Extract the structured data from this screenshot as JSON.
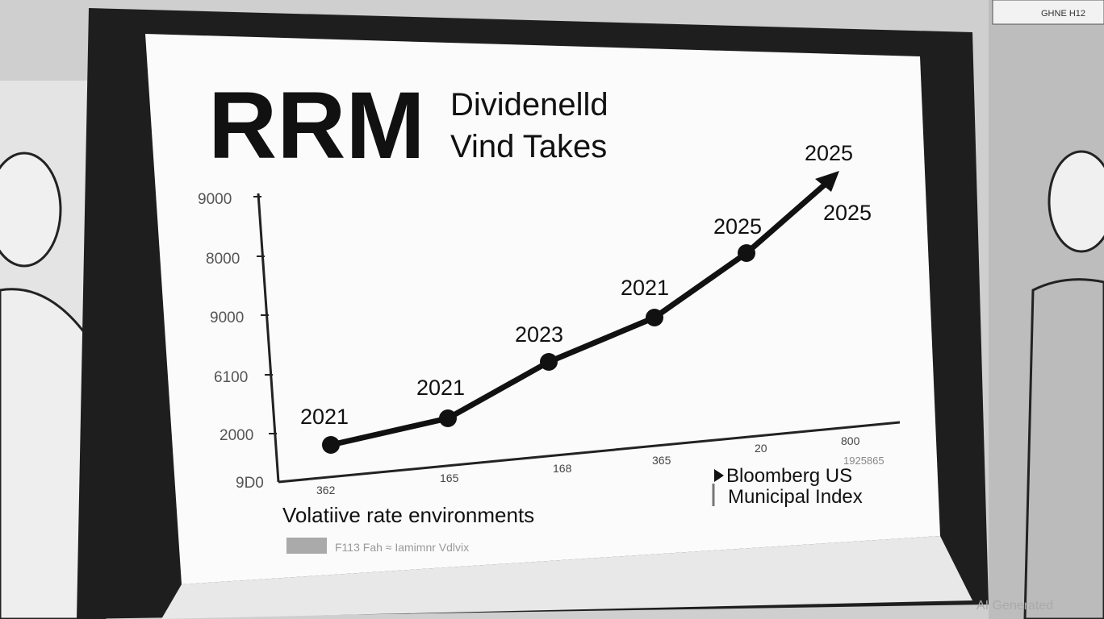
{
  "screen": {
    "title": "RRM",
    "subtitle": [
      "Dividenelld",
      "Vind Takes"
    ],
    "y_axis_labels": [
      "9000",
      "8000",
      "9000",
      "6100",
      "2000",
      "9D0"
    ],
    "x_axis_labels": [
      "362",
      "165",
      "168",
      "365",
      "20",
      "800"
    ],
    "point_labels": [
      "2021",
      "2021",
      "2023",
      "2021",
      "2025",
      "2025",
      "2025"
    ],
    "caption": "Volatiive rate environments",
    "legend_faint": "F113  Fah  ≈ Iamimnr Vdlvix",
    "legend": [
      "Bloomberg US",
      "Municipal Index"
    ],
    "legend_extra": "1925865"
  },
  "background_sign": "GHNE H12",
  "watermark": "AI Generated"
}
